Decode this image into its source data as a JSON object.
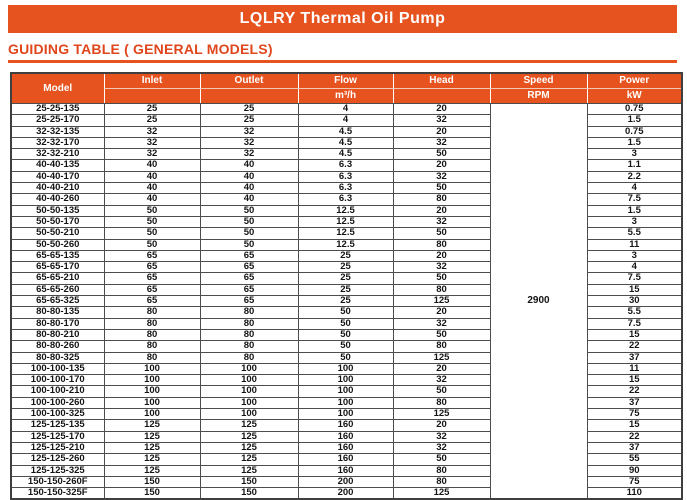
{
  "title": "LQLRY Thermal Oil Pump",
  "section_heading": "GUIDING TABLE ( GENERAL MODELS)",
  "colors": {
    "accent_banner": "#E6531F",
    "accent_heading_text": "#E0461C",
    "header_text": "#ffffff",
    "body_text": "#141414",
    "grid_line": "#4d4d4d"
  },
  "table": {
    "headers": {
      "model": "Model",
      "inlet": "Inlet",
      "outlet": "Outlet",
      "flow": "Flow",
      "flow_unit": "m³/h",
      "head": "Head",
      "speed": "Speed",
      "speed_unit": "RPM",
      "power": "Power",
      "power_unit": "kW"
    },
    "speed_value": "2900",
    "rows": [
      [
        "25-25-135",
        "25",
        "25",
        "4",
        "20",
        "0.75"
      ],
      [
        "25-25-170",
        "25",
        "25",
        "4",
        "32",
        "1.5"
      ],
      [
        "32-32-135",
        "32",
        "32",
        "4.5",
        "20",
        "0.75"
      ],
      [
        "32-32-170",
        "32",
        "32",
        "4.5",
        "32",
        "1.5"
      ],
      [
        "32-32-210",
        "32",
        "32",
        "4.5",
        "50",
        "3"
      ],
      [
        "40-40-135",
        "40",
        "40",
        "6.3",
        "20",
        "1.1"
      ],
      [
        "40-40-170",
        "40",
        "40",
        "6.3",
        "32",
        "2.2"
      ],
      [
        "40-40-210",
        "40",
        "40",
        "6.3",
        "50",
        "4"
      ],
      [
        "40-40-260",
        "40",
        "40",
        "6.3",
        "80",
        "7.5"
      ],
      [
        "50-50-135",
        "50",
        "50",
        "12.5",
        "20",
        "1.5"
      ],
      [
        "50-50-170",
        "50",
        "50",
        "12.5",
        "32",
        "3"
      ],
      [
        "50-50-210",
        "50",
        "50",
        "12.5",
        "50",
        "5.5"
      ],
      [
        "50-50-260",
        "50",
        "50",
        "12.5",
        "80",
        "11"
      ],
      [
        "65-65-135",
        "65",
        "65",
        "25",
        "20",
        "3"
      ],
      [
        "65-65-170",
        "65",
        "65",
        "25",
        "32",
        "4"
      ],
      [
        "65-65-210",
        "65",
        "65",
        "25",
        "50",
        "7.5"
      ],
      [
        "65-65-260",
        "65",
        "65",
        "25",
        "80",
        "15"
      ],
      [
        "65-65-325",
        "65",
        "65",
        "25",
        "125",
        "30"
      ],
      [
        "80-80-135",
        "80",
        "80",
        "50",
        "20",
        "5.5"
      ],
      [
        "80-80-170",
        "80",
        "80",
        "50",
        "32",
        "7.5"
      ],
      [
        "80-80-210",
        "80",
        "80",
        "50",
        "50",
        "15"
      ],
      [
        "80-80-260",
        "80",
        "80",
        "50",
        "80",
        "22"
      ],
      [
        "80-80-325",
        "80",
        "80",
        "50",
        "125",
        "37"
      ],
      [
        "100-100-135",
        "100",
        "100",
        "100",
        "20",
        "11"
      ],
      [
        "100-100-170",
        "100",
        "100",
        "100",
        "32",
        "15"
      ],
      [
        "100-100-210",
        "100",
        "100",
        "100",
        "50",
        "22"
      ],
      [
        "100-100-260",
        "100",
        "100",
        "100",
        "80",
        "37"
      ],
      [
        "100-100-325",
        "100",
        "100",
        "100",
        "125",
        "75"
      ],
      [
        "125-125-135",
        "125",
        "125",
        "160",
        "20",
        "15"
      ],
      [
        "125-125-170",
        "125",
        "125",
        "160",
        "32",
        "22"
      ],
      [
        "125-125-210",
        "125",
        "125",
        "160",
        "32",
        "37"
      ],
      [
        "125-125-260",
        "125",
        "125",
        "160",
        "50",
        "55"
      ],
      [
        "125-125-325",
        "125",
        "125",
        "160",
        "80",
        "90"
      ],
      [
        "150-150-260F",
        "150",
        "150",
        "200",
        "80",
        "75"
      ],
      [
        "150-150-325F",
        "150",
        "150",
        "200",
        "125",
        "110"
      ]
    ]
  }
}
